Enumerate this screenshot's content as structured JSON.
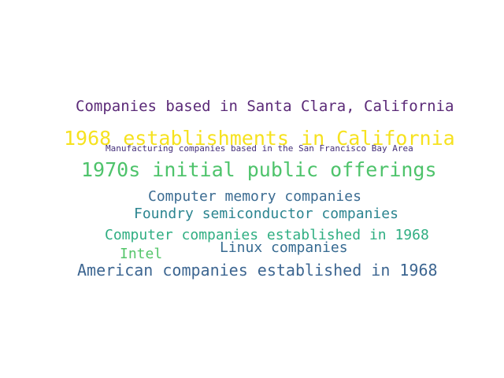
{
  "words": [
    {
      "text": "Companies based in Santa Clara, California",
      "color": "#5b2a78"
    },
    {
      "text": "1968 establishments in California",
      "color": "#f6e21f"
    },
    {
      "text": "Manufacturing companies based in the San Francisco Bay Area",
      "color": "#45307a"
    },
    {
      "text": "1970s initial public offerings",
      "color": "#4ec36b"
    },
    {
      "text": "Computer memory companies",
      "color": "#3c6c92"
    },
    {
      "text": "Foundry semiconductor companies",
      "color": "#2c8590"
    },
    {
      "text": "Computer companies established in 1968",
      "color": "#2fae82"
    },
    {
      "text": "Linux companies",
      "color": "#366a91"
    },
    {
      "text": "Intel",
      "color": "#54c56a"
    },
    {
      "text": "American companies established in 1968",
      "color": "#3d6691"
    }
  ]
}
